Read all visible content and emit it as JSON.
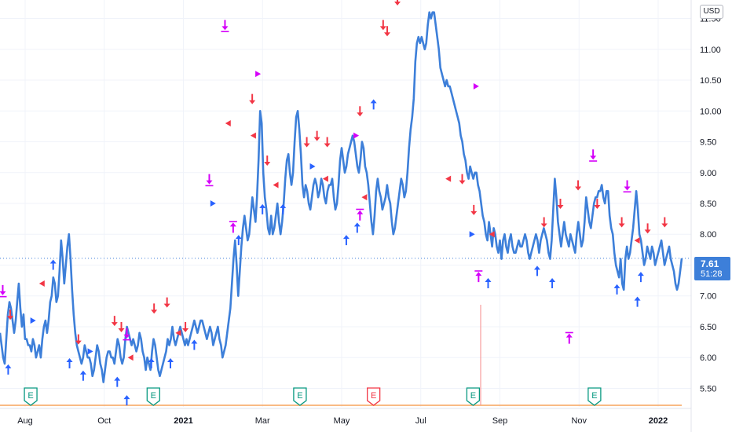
{
  "chart_data": {
    "type": "line",
    "currency": "USD",
    "last_price": "7.61",
    "countdown": "51:28",
    "ylim": [
      5.2,
      11.8
    ],
    "y_ticks": [
      "5.50",
      "6.00",
      "6.50",
      "7.00",
      "7.50",
      "8.00",
      "8.50",
      "9.00",
      "9.50",
      "10.00",
      "10.50",
      "11.00",
      "11.50"
    ],
    "x_ticks": [
      {
        "label": "Aug",
        "bold": false
      },
      {
        "label": "Oct",
        "bold": false
      },
      {
        "label": "2021",
        "bold": true
      },
      {
        "label": "Mar",
        "bold": false
      },
      {
        "label": "May",
        "bold": false
      },
      {
        "label": "Jul",
        "bold": false
      },
      {
        "label": "Sep",
        "bold": false
      },
      {
        "label": "Nov",
        "bold": false
      },
      {
        "label": "2022",
        "bold": true
      }
    ],
    "grid": true,
    "series": [
      {
        "color": "#3d7fd9",
        "values": [
          6.4,
          6.2,
          6.0,
          5.9,
          6.3,
          6.7,
          6.9,
          6.8,
          6.6,
          6.4,
          6.6,
          6.9,
          7.2,
          6.8,
          6.5,
          6.7,
          6.3,
          6.3,
          6.2,
          6.2,
          6.1,
          6.3,
          6.2,
          6.0,
          6.1,
          6.2,
          6.0,
          6.3,
          6.5,
          6.6,
          6.4,
          6.6,
          6.9,
          7.0,
          7.3,
          7.2,
          6.9,
          7.0,
          7.4,
          7.9,
          7.6,
          7.2,
          7.5,
          7.8,
          8.0,
          7.6,
          7.1,
          6.7,
          6.4,
          6.2,
          6.1,
          6.0,
          5.9,
          6.0,
          6.2,
          6.1,
          6.0,
          6.0,
          5.9,
          5.7,
          5.8,
          6.0,
          6.2,
          6.1,
          5.9,
          5.8,
          5.6,
          5.8,
          6.0,
          6.1,
          6.1,
          6.0,
          6.0,
          5.9,
          6.1,
          6.3,
          6.2,
          6.0,
          5.9,
          6.0,
          6.3,
          6.5,
          6.4,
          6.3,
          6.2,
          6.3,
          6.2,
          6.1,
          6.2,
          6.4,
          6.3,
          6.1,
          6.0,
          5.8,
          6.0,
          5.9,
          5.8,
          6.1,
          6.3,
          6.2,
          6.0,
          5.8,
          5.7,
          5.8,
          5.9,
          6.0,
          6.1,
          6.3,
          6.2,
          6.3,
          6.5,
          6.3,
          6.2,
          6.3,
          6.4,
          6.5,
          6.4,
          6.3,
          6.2,
          6.3,
          6.2,
          6.3,
          6.4,
          6.5,
          6.6,
          6.5,
          6.4,
          6.5,
          6.6,
          6.6,
          6.5,
          6.4,
          6.3,
          6.4,
          6.5,
          6.4,
          6.2,
          6.3,
          6.4,
          6.5,
          6.3,
          6.2,
          6.0,
          6.1,
          6.2,
          6.4,
          6.6,
          6.8,
          7.2,
          7.6,
          7.9,
          7.5,
          7.0,
          7.4,
          7.8,
          8.1,
          8.3,
          8.1,
          7.9,
          8.0,
          8.3,
          8.6,
          8.4,
          8.2,
          8.6,
          9.2,
          10.0,
          9.8,
          9.0,
          8.6,
          8.4,
          8.1,
          8.0,
          8.3,
          8.0,
          8.1,
          8.3,
          8.5,
          8.2,
          8.0,
          8.2,
          8.5,
          8.9,
          9.2,
          9.3,
          9.0,
          8.8,
          9.0,
          9.5,
          9.9,
          10.0,
          9.7,
          9.3,
          8.8,
          8.6,
          8.8,
          8.7,
          8.5,
          8.4,
          8.6,
          8.8,
          8.9,
          8.8,
          8.6,
          8.7,
          8.9,
          8.8,
          8.6,
          8.5,
          8.7,
          8.8,
          8.8,
          8.9,
          8.6,
          8.4,
          8.5,
          8.8,
          9.2,
          9.4,
          9.2,
          9.0,
          9.1,
          9.3,
          9.4,
          9.5,
          9.6,
          9.5,
          9.3,
          9.1,
          9.0,
          9.2,
          9.5,
          9.4,
          9.1,
          9.0,
          8.8,
          8.5,
          8.2,
          8.0,
          8.3,
          8.7,
          8.9,
          8.7,
          8.6,
          8.4,
          8.5,
          8.6,
          8.8,
          8.6,
          8.5,
          8.2,
          8.0,
          8.1,
          8.3,
          8.5,
          8.7,
          8.9,
          8.8,
          8.6,
          8.7,
          9.0,
          9.4,
          9.7,
          9.9,
          10.2,
          10.8,
          11.1,
          11.2,
          11.1,
          11.2,
          11.1,
          11.0,
          11.1,
          11.4,
          11.6,
          11.5,
          11.6,
          11.6,
          11.4,
          11.2,
          11.0,
          10.7,
          10.6,
          10.5,
          10.4,
          10.5,
          10.4,
          10.4,
          10.3,
          10.2,
          10.1,
          10.0,
          9.9,
          9.8,
          9.6,
          9.5,
          9.3,
          9.2,
          9.0,
          8.9,
          9.1,
          9.0,
          8.9,
          9.0,
          9.0,
          8.8,
          8.7,
          8.5,
          8.3,
          8.2,
          8.0,
          7.9,
          8.2,
          8.0,
          7.8,
          8.1,
          8.0,
          7.8,
          7.7,
          7.9,
          7.6,
          7.9,
          8.0,
          7.8,
          7.7,
          7.9,
          8.0,
          7.8,
          7.7,
          7.7,
          7.8,
          7.9,
          7.8,
          7.8,
          7.9,
          8.0,
          7.9,
          7.7,
          7.6,
          7.7,
          7.8,
          7.9,
          8.0,
          7.9,
          7.7,
          7.9,
          8.0,
          8.1,
          8.0,
          7.9,
          7.7,
          7.6,
          7.9,
          8.4,
          8.9,
          8.6,
          8.2,
          8.0,
          7.8,
          8.0,
          8.2,
          8.0,
          7.9,
          7.8,
          8.0,
          7.9,
          7.8,
          7.7,
          8.0,
          8.2,
          8.0,
          7.8,
          7.9,
          8.2,
          8.6,
          8.4,
          8.2,
          8.1,
          8.3,
          8.5,
          8.6,
          8.6,
          8.7,
          8.7,
          8.8,
          8.6,
          8.5,
          8.7,
          8.7,
          8.3,
          8.1,
          8.0,
          7.7,
          7.5,
          7.4,
          7.3,
          7.6,
          7.2,
          7.1,
          7.6,
          7.8,
          7.6,
          7.7,
          7.9,
          8.1,
          8.4,
          8.7,
          8.4,
          8.0,
          7.9,
          7.7,
          7.5,
          7.6,
          7.8,
          7.7,
          7.6,
          7.8,
          7.7,
          7.5,
          7.6,
          7.7,
          7.8,
          7.9,
          7.7,
          7.5,
          7.6,
          7.7,
          7.8,
          7.6,
          7.5,
          7.4,
          7.2,
          7.1,
          7.2,
          7.4,
          7.61
        ]
      }
    ],
    "markers": [
      {
        "shape": "arrow-up",
        "color": "#2962ff",
        "x": 0.012,
        "v": 5.8
      },
      {
        "shape": "arrow-down",
        "color": "#f23645",
        "x": 0.015,
        "v": 6.7
      },
      {
        "shape": "arrow-down-bar",
        "color": "#d500f9",
        "x": 0.004,
        "v": 7.1
      },
      {
        "shape": "tri-left",
        "color": "#f23645",
        "x": 0.062,
        "v": 7.2
      },
      {
        "shape": "tri-right",
        "color": "#2962ff",
        "x": 0.048,
        "v": 6.6
      },
      {
        "shape": "arrow-up",
        "color": "#2962ff",
        "x": 0.078,
        "v": 7.5
      },
      {
        "shape": "arrow-down",
        "color": "#f23645",
        "x": 0.115,
        "v": 6.3
      },
      {
        "shape": "arrow-up",
        "color": "#2962ff",
        "x": 0.102,
        "v": 5.9
      },
      {
        "shape": "arrow-up",
        "color": "#2962ff",
        "x": 0.122,
        "v": 5.7
      },
      {
        "shape": "tri-right",
        "color": "#2962ff",
        "x": 0.132,
        "v": 6.1
      },
      {
        "shape": "arrow-down",
        "color": "#f23645",
        "x": 0.168,
        "v": 6.6
      },
      {
        "shape": "arrow-down",
        "color": "#f23645",
        "x": 0.178,
        "v": 6.5
      },
      {
        "shape": "arrow-down-bar",
        "color": "#d500f9",
        "x": 0.186,
        "v": 6.4
      },
      {
        "shape": "arrow-up",
        "color": "#2962ff",
        "x": 0.172,
        "v": 5.6
      },
      {
        "shape": "arrow-up",
        "color": "#2962ff",
        "x": 0.186,
        "v": 5.3
      },
      {
        "shape": "tri-left",
        "color": "#f23645",
        "x": 0.192,
        "v": 6.0
      },
      {
        "shape": "arrow-down",
        "color": "#f23645",
        "x": 0.226,
        "v": 6.8
      },
      {
        "shape": "arrow-down",
        "color": "#f23645",
        "x": 0.245,
        "v": 6.9
      },
      {
        "shape": "arrow-up",
        "color": "#2962ff",
        "x": 0.222,
        "v": 5.9
      },
      {
        "shape": "arrow-up",
        "color": "#2962ff",
        "x": 0.25,
        "v": 5.9
      },
      {
        "shape": "tri-left",
        "color": "#f23645",
        "x": 0.262,
        "v": 6.4
      },
      {
        "shape": "arrow-down",
        "color": "#f23645",
        "x": 0.272,
        "v": 6.5
      },
      {
        "shape": "arrow-up",
        "color": "#2962ff",
        "x": 0.285,
        "v": 6.2
      },
      {
        "shape": "arrow-down-bar",
        "color": "#d500f9",
        "x": 0.307,
        "v": 8.9
      },
      {
        "shape": "tri-right",
        "color": "#2962ff",
        "x": 0.312,
        "v": 8.5
      },
      {
        "shape": "arrow-down-bar",
        "color": "#d500f9",
        "x": 0.33,
        "v": 11.4
      },
      {
        "shape": "tri-left",
        "color": "#f23645",
        "x": 0.335,
        "v": 9.8
      },
      {
        "shape": "arrow-up",
        "color": "#2962ff",
        "x": 0.35,
        "v": 7.9
      },
      {
        "shape": "arrow-up-bar",
        "color": "#d500f9",
        "x": 0.342,
        "v": 8.1
      },
      {
        "shape": "tri-right",
        "color": "#d500f9",
        "x": 0.378,
        "v": 10.6
      },
      {
        "shape": "arrow-down",
        "color": "#f23645",
        "x": 0.37,
        "v": 10.2
      },
      {
        "shape": "tri-left",
        "color": "#f23645",
        "x": 0.372,
        "v": 9.6
      },
      {
        "shape": "arrow-down",
        "color": "#f23645",
        "x": 0.392,
        "v": 9.2
      },
      {
        "shape": "arrow-up",
        "color": "#2962ff",
        "x": 0.385,
        "v": 8.4
      },
      {
        "shape": "arrow-up",
        "color": "#2962ff",
        "x": 0.415,
        "v": 8.4
      },
      {
        "shape": "tri-left",
        "color": "#f23645",
        "x": 0.405,
        "v": 8.8
      },
      {
        "shape": "arrow-down",
        "color": "#f23645",
        "x": 0.45,
        "v": 9.5
      },
      {
        "shape": "arrow-down",
        "color": "#f23645",
        "x": 0.465,
        "v": 9.6
      },
      {
        "shape": "tri-right",
        "color": "#2962ff",
        "x": 0.458,
        "v": 9.1
      },
      {
        "shape": "arrow-down",
        "color": "#f23645",
        "x": 0.48,
        "v": 9.5
      },
      {
        "shape": "tri-left",
        "color": "#f23645",
        "x": 0.478,
        "v": 8.9
      },
      {
        "shape": "arrow-up",
        "color": "#2962ff",
        "x": 0.508,
        "v": 7.9
      },
      {
        "shape": "arrow-up",
        "color": "#2962ff",
        "x": 0.524,
        "v": 8.1
      },
      {
        "shape": "arrow-up-bar",
        "color": "#d500f9",
        "x": 0.528,
        "v": 8.3
      },
      {
        "shape": "tri-left",
        "color": "#f23645",
        "x": 0.535,
        "v": 8.6
      },
      {
        "shape": "tri-right",
        "color": "#d500f9",
        "x": 0.522,
        "v": 9.6
      },
      {
        "shape": "arrow-down",
        "color": "#f23645",
        "x": 0.528,
        "v": 10.0
      },
      {
        "shape": "arrow-up",
        "color": "#2962ff",
        "x": 0.548,
        "v": 10.1
      },
      {
        "shape": "arrow-down",
        "color": "#f23645",
        "x": 0.562,
        "v": 11.4
      },
      {
        "shape": "arrow-down",
        "color": "#f23645",
        "x": 0.568,
        "v": 11.3
      },
      {
        "shape": "arrow-down",
        "color": "#f23645",
        "x": 0.583,
        "v": 11.8
      },
      {
        "shape": "tri-right",
        "color": "#d500f9",
        "x": 0.698,
        "v": 10.4
      },
      {
        "shape": "tri-left",
        "color": "#f23645",
        "x": 0.658,
        "v": 8.9
      },
      {
        "shape": "arrow-down",
        "color": "#f23645",
        "x": 0.678,
        "v": 8.9
      },
      {
        "shape": "tri-right",
        "color": "#2962ff",
        "x": 0.692,
        "v": 8.0
      },
      {
        "shape": "arrow-down",
        "color": "#f23645",
        "x": 0.695,
        "v": 8.4
      },
      {
        "shape": "arrow-up-bar",
        "color": "#d500f9",
        "x": 0.702,
        "v": 7.3
      },
      {
        "shape": "arrow-up",
        "color": "#2962ff",
        "x": 0.716,
        "v": 7.2
      },
      {
        "shape": "tri-left",
        "color": "#f23645",
        "x": 0.722,
        "v": 8.0
      },
      {
        "shape": "arrow-up",
        "color": "#2962ff",
        "x": 0.788,
        "v": 7.4
      },
      {
        "shape": "arrow-up",
        "color": "#2962ff",
        "x": 0.81,
        "v": 7.2
      },
      {
        "shape": "arrow-down",
        "color": "#f23645",
        "x": 0.798,
        "v": 8.2
      },
      {
        "shape": "arrow-down",
        "color": "#f23645",
        "x": 0.822,
        "v": 8.5
      },
      {
        "shape": "arrow-up-bar",
        "color": "#d500f9",
        "x": 0.835,
        "v": 6.3
      },
      {
        "shape": "arrow-down",
        "color": "#f23645",
        "x": 0.848,
        "v": 8.8
      },
      {
        "shape": "arrow-down-bar",
        "color": "#d500f9",
        "x": 0.87,
        "v": 9.3
      },
      {
        "shape": "arrow-down",
        "color": "#f23645",
        "x": 0.876,
        "v": 8.5
      },
      {
        "shape": "arrow-up",
        "color": "#2962ff",
        "x": 0.905,
        "v": 7.1
      },
      {
        "shape": "arrow-down",
        "color": "#f23645",
        "x": 0.912,
        "v": 8.2
      },
      {
        "shape": "arrow-down-bar",
        "color": "#d500f9",
        "x": 0.92,
        "v": 8.8
      },
      {
        "shape": "tri-left",
        "color": "#f23645",
        "x": 0.935,
        "v": 7.9
      },
      {
        "shape": "arrow-down",
        "color": "#f23645",
        "x": 0.95,
        "v": 8.1
      },
      {
        "shape": "arrow-up",
        "color": "#2962ff",
        "x": 0.935,
        "v": 6.9
      },
      {
        "shape": "arrow-down",
        "color": "#f23645",
        "x": 0.975,
        "v": 8.2
      },
      {
        "shape": "arrow-up",
        "color": "#2962ff",
        "x": 0.94,
        "v": 7.3
      }
    ],
    "earnings": [
      {
        "label": "E",
        "color": "#089981",
        "x": 0.045
      },
      {
        "label": "E",
        "color": "#089981",
        "x": 0.225
      },
      {
        "label": "E",
        "color": "#089981",
        "x": 0.44
      },
      {
        "label": "E",
        "color": "#f23645",
        "x": 0.548
      },
      {
        "label": "E",
        "color": "#089981",
        "x": 0.694
      },
      {
        "label": "E",
        "color": "#089981",
        "x": 0.872
      }
    ]
  }
}
